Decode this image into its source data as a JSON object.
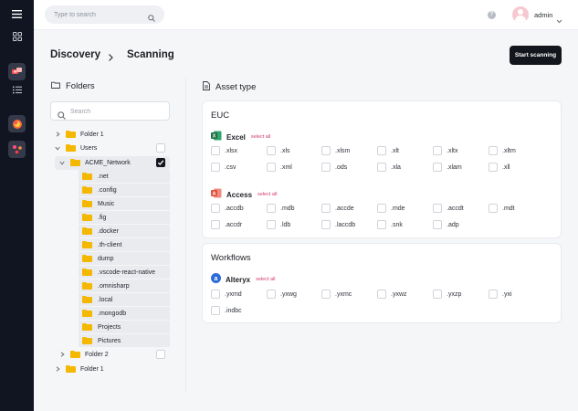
{
  "topbar": {
    "search_placeholder": "Type to search",
    "user_name": "admin"
  },
  "header": {
    "breadcrumb": [
      "Discovery",
      "Scanning"
    ],
    "start_label": "Start scanning"
  },
  "folders": {
    "title": "Folders",
    "search_placeholder": "Search",
    "tree": [
      {
        "label": "Folder 1",
        "expanded": false,
        "checked": null
      },
      {
        "label": "Users",
        "expanded": true,
        "checked": false
      },
      {
        "label": "ACME_Network",
        "expanded": true,
        "checked": true
      },
      {
        "label": "Folder 2",
        "expanded": false,
        "checked": false
      },
      {
        "label": "Folder 1",
        "expanded": false,
        "checked": null
      }
    ],
    "children": [
      ".net",
      ".config",
      "Music",
      ".fig",
      ".docker",
      ".th-client",
      "dump",
      ".vscode-react-native",
      ".omnisharp",
      ".local",
      ".mongodb",
      "Projects",
      "Pictures"
    ]
  },
  "asset_type": {
    "title": "Asset type",
    "select_all": "select all",
    "euc": {
      "title": "EUC",
      "excel": {
        "name": "Excel",
        "options": [
          ".xlsx",
          ".xls",
          ".xlsm",
          ".xlt",
          ".xltx",
          ".xltm",
          ".csv",
          ".xml",
          ".ods",
          ".xla",
          ".xlam",
          ".xll"
        ]
      },
      "access": {
        "name": "Access",
        "options": [
          ".accdb",
          ".mdb",
          ".accde",
          ".mde",
          ".accdt",
          ".mdt",
          ".accdr",
          ".ldb",
          ".laccdb",
          ".snk",
          ".adp"
        ]
      }
    },
    "workflows": {
      "title": "Workflows",
      "alteryx": {
        "name": "Alteryx",
        "options": [
          ".yxmd",
          ".yxwg",
          ".yxmc",
          ".yxwz",
          ".yxzp",
          ".yxi",
          ".indbc"
        ]
      }
    }
  },
  "icons": {
    "rail": [
      "menu-icon",
      "grid-icon",
      "app-icon",
      "list-icon",
      "app-icon",
      "app-icon"
    ],
    "excel": "excel-icon",
    "access": "access-icon",
    "alteryx": "alteryx-icon"
  },
  "colors": {
    "rail": "#111521",
    "folder": "#f5b800",
    "select_all": "#d2386c",
    "primary_button": "#14161d",
    "excel": "#1d7044",
    "access": "#e2513e",
    "alteryx": "#2d6bd8"
  }
}
